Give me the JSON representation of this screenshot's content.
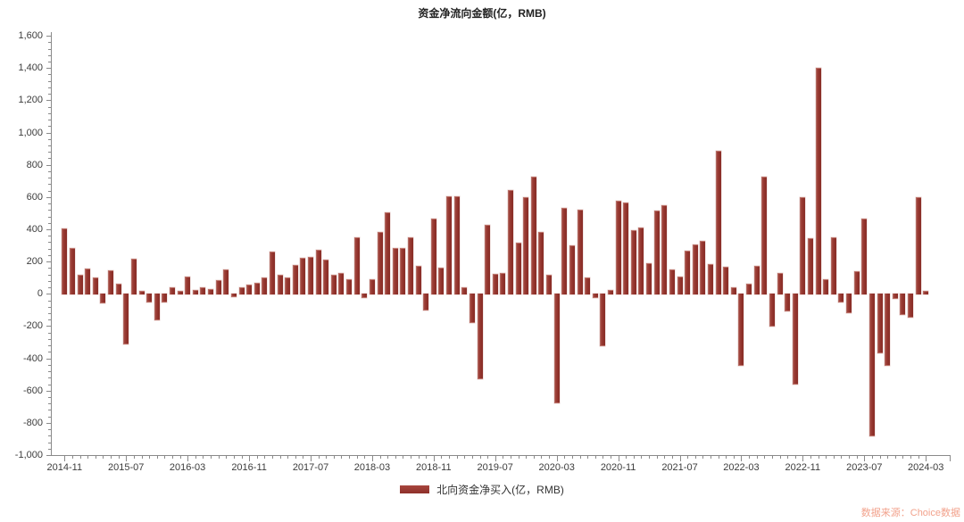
{
  "title": "资金净流向金额(亿，RMB)",
  "legend": {
    "label": "北向资金净买入(亿，RMB)"
  },
  "source": "数据来源：Choice数据",
  "colors": {
    "bar": "#93342d",
    "bar_highlight": "#c08a82",
    "axis": "#8a8a8a",
    "text": "#3c3c3c",
    "title_text": "#222222",
    "source_text": "#f2a28c",
    "background": "#ffffff"
  },
  "y_axis": {
    "min": -1000,
    "max": 1600,
    "major_step": 200,
    "minor_step": 40,
    "tick_labels": [
      "1,600",
      "1,400",
      "1,200",
      "1,000",
      "800",
      "600",
      "400",
      "200",
      "0",
      "-200",
      "-400",
      "-600",
      "-800",
      "-1,000"
    ]
  },
  "x_axis": {
    "label_every": 8,
    "shown_labels": [
      "2014-11",
      "2015-07",
      "2016-03",
      "2016-11",
      "2017-07",
      "2018-03",
      "2018-11",
      "2019-07",
      "2020-03",
      "2020-11",
      "2021-07",
      "2022-03",
      "2022-11",
      "2023-07",
      "2024-03"
    ]
  },
  "chart_data": {
    "type": "bar",
    "title": "资金净流向金额(亿，RMB)",
    "xlabel": "",
    "ylabel": "",
    "ylim": [
      -1000,
      1600
    ],
    "grid": false,
    "legend_position": "bottom",
    "x": [
      "2014-11",
      "2014-12",
      "2015-01",
      "2015-02",
      "2015-03",
      "2015-04",
      "2015-05",
      "2015-06",
      "2015-07",
      "2015-08",
      "2015-09",
      "2015-10",
      "2015-11",
      "2015-12",
      "2016-01",
      "2016-02",
      "2016-03",
      "2016-04",
      "2016-05",
      "2016-06",
      "2016-07",
      "2016-08",
      "2016-09",
      "2016-10",
      "2016-11",
      "2016-12",
      "2017-01",
      "2017-02",
      "2017-03",
      "2017-04",
      "2017-05",
      "2017-06",
      "2017-07",
      "2017-08",
      "2017-09",
      "2017-10",
      "2017-11",
      "2017-12",
      "2018-01",
      "2018-02",
      "2018-03",
      "2018-04",
      "2018-05",
      "2018-06",
      "2018-07",
      "2018-08",
      "2018-09",
      "2018-10",
      "2018-11",
      "2018-12",
      "2019-01",
      "2019-02",
      "2019-03",
      "2019-04",
      "2019-05",
      "2019-06",
      "2019-07",
      "2019-08",
      "2019-09",
      "2019-10",
      "2019-11",
      "2019-12",
      "2020-01",
      "2020-02",
      "2020-03",
      "2020-04",
      "2020-05",
      "2020-06",
      "2020-07",
      "2020-08",
      "2020-09",
      "2020-10",
      "2020-11",
      "2020-12",
      "2021-01",
      "2021-02",
      "2021-03",
      "2021-04",
      "2021-05",
      "2021-06",
      "2021-07",
      "2021-08",
      "2021-09",
      "2021-10",
      "2021-11",
      "2021-12",
      "2022-01",
      "2022-02",
      "2022-03",
      "2022-04",
      "2022-05",
      "2022-06",
      "2022-07",
      "2022-08",
      "2022-09",
      "2022-10",
      "2022-11",
      "2022-12",
      "2023-01",
      "2023-02",
      "2023-03",
      "2023-04",
      "2023-05",
      "2023-06",
      "2023-07",
      "2023-08",
      "2023-09",
      "2023-10",
      "2023-11",
      "2023-12",
      "2024-01",
      "2024-02",
      "2024-03"
    ],
    "series": [
      {
        "name": "北向资金净买入(亿，RMB)",
        "values": [
          405,
          283,
          115,
          158,
          100,
          -56,
          143,
          60,
          -309,
          217,
          20,
          -47,
          -161,
          -47,
          40,
          18,
          106,
          21,
          38,
          27,
          86,
          150,
          -14,
          42,
          55,
          69,
          99,
          261,
          115,
          103,
          180,
          222,
          226,
          272,
          213,
          119,
          128,
          90,
          350,
          -19,
          92,
          383,
          503,
          285,
          285,
          350,
          174,
          -97,
          466,
          162,
          604,
          604,
          42,
          -174,
          -525,
          425,
          121,
          130,
          645,
          315,
          600,
          724,
          386,
          116,
          -672,
          530,
          300,
          521,
          103,
          -19,
          -318,
          21,
          576,
          567,
          396,
          410,
          189,
          517,
          549,
          152,
          106,
          268,
          304,
          327,
          184,
          884,
          165,
          42,
          -443,
          64,
          171,
          724,
          -198,
          128,
          -106,
          -560,
          600,
          346,
          1400,
          88,
          350,
          -51,
          -115,
          138,
          466,
          -880,
          -364,
          -443,
          -28,
          -124,
          -143,
          599,
          20
        ]
      }
    ]
  }
}
